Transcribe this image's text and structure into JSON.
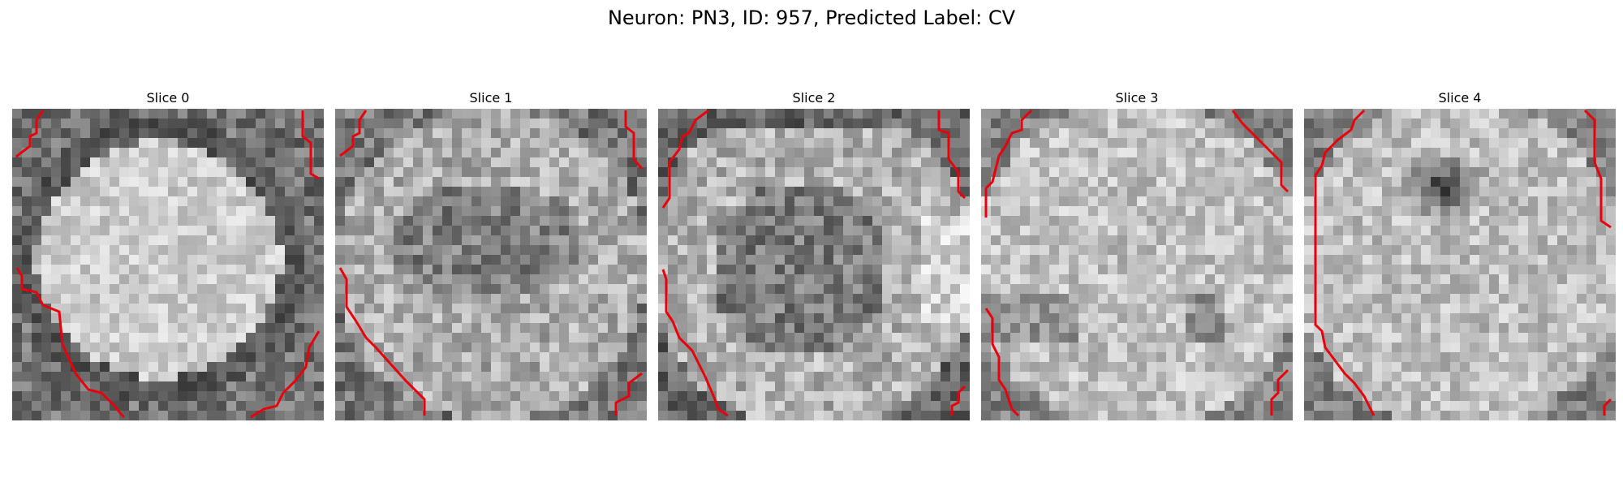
{
  "figure": {
    "title": "Neuron: PN3, ID: 957, Predicted Label: CV"
  },
  "panels": [
    {
      "title": "Slice 0",
      "variant": "soma-outlined-bright",
      "contour_color": "#e8000b"
    },
    {
      "title": "Slice 1",
      "variant": "cell-interior-mottled",
      "contour_color": "#e8000b"
    },
    {
      "title": "Slice 2",
      "variant": "cell-interior-dark-center",
      "contour_color": "#e8000b"
    },
    {
      "title": "Slice 3",
      "variant": "cell-interior-bright",
      "contour_color": "#e8000b"
    },
    {
      "title": "Slice 4",
      "variant": "cell-interior-dark-spot",
      "contour_color": "#e8000b"
    }
  ],
  "colormap": "grayscale"
}
